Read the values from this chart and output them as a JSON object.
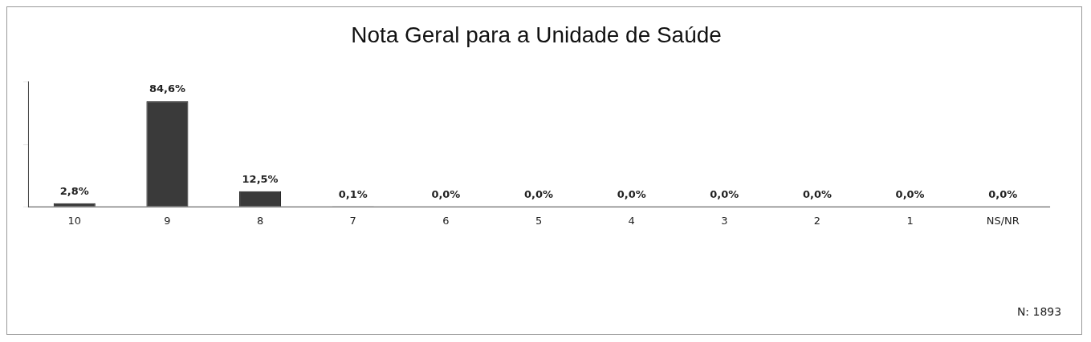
{
  "chart_data": {
    "type": "bar",
    "title": "Nota Geral para a Unidade de Saúde",
    "categories": [
      "10",
      "9",
      "8",
      "7",
      "6",
      "5",
      "4",
      "3",
      "2",
      "1",
      "NS/NR"
    ],
    "values": [
      2.8,
      84.6,
      12.5,
      0.1,
      0,
      0,
      0,
      0,
      0,
      0,
      0
    ],
    "value_labels": [
      "2,8%",
      "84,6%",
      "12,5%",
      "0,1%",
      "0,0%",
      "0,0%",
      "0,0%",
      "0,0%",
      "0,0%",
      "0,0%",
      "0,0%"
    ],
    "color": "#3a3a3a",
    "ylim": [
      0,
      100
    ],
    "yticks": [
      {
        "value": 0,
        "label": null
      },
      {
        "value": 50,
        "label": null
      },
      {
        "value": 100,
        "label": null
      }
    ],
    "tick_labels": "x",
    "grid": false,
    "legend": false,
    "annotations": [
      "N: 1893"
    ]
  }
}
